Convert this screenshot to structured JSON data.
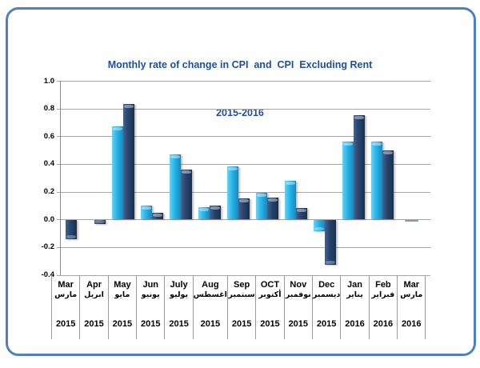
{
  "frame": {
    "border_color": "#4E81BD",
    "background": "#FFFFFF"
  },
  "title": {
    "line1": "Monthly rate of change in CPI  and  CPI  Excluding Rent",
    "line2": "2015-2016",
    "color": "#1F4E9E"
  },
  "chart_data": {
    "type": "bar",
    "title": "Monthly rate of change in CPI and CPI Excluding Rent",
    "subtitle": "2015-2016",
    "categories": [
      {
        "en": "Mar",
        "ar": "مارس",
        "year": "2015"
      },
      {
        "en": "Apr",
        "ar": "ابريل",
        "year": "2015"
      },
      {
        "en": "May",
        "ar": "مايو",
        "year": "2015"
      },
      {
        "en": "Jun",
        "ar": "يونيو",
        "year": "2015"
      },
      {
        "en": "July",
        "ar": "يوليو",
        "year": "2015"
      },
      {
        "en": "Aug",
        "ar": "اغسطس",
        "year": "2015"
      },
      {
        "en": "Sep",
        "ar": "سبتمبر",
        "year": "2015"
      },
      {
        "en": "OCT",
        "ar": "أكتوبر",
        "year": "2015"
      },
      {
        "en": "Nov",
        "ar": "نوفمبر",
        "year": "2015"
      },
      {
        "en": "Dec",
        "ar": "ديسمبر",
        "year": "2015"
      },
      {
        "en": "Jan",
        "ar": "يناير",
        "year": "2016"
      },
      {
        "en": "Feb",
        "ar": "فبراير",
        "year": "2016"
      },
      {
        "en": "Mar",
        "ar": "مارس",
        "year": "2016"
      }
    ],
    "series": [
      {
        "name": "CPI",
        "color": "#29ABE2",
        "values": [
          0.0,
          0.0,
          0.67,
          0.1,
          0.47,
          0.09,
          0.38,
          0.19,
          0.28,
          -0.08,
          0.56,
          0.56,
          0.0
        ]
      },
      {
        "name": "CPI Excluding Rent",
        "color": "#24436B",
        "values": [
          -0.14,
          -0.03,
          0.83,
          0.05,
          0.36,
          0.1,
          0.15,
          0.16,
          0.08,
          -0.32,
          0.75,
          0.5,
          0.0
        ]
      }
    ],
    "ylim": [
      -0.4,
      1.0
    ],
    "ytick_step": 0.2,
    "yticks": [
      "1.0",
      "0.8",
      "0.6",
      "0.4",
      "0.2",
      "0.0",
      "-0.2",
      "-0.4"
    ],
    "grid": true,
    "legend": false
  }
}
